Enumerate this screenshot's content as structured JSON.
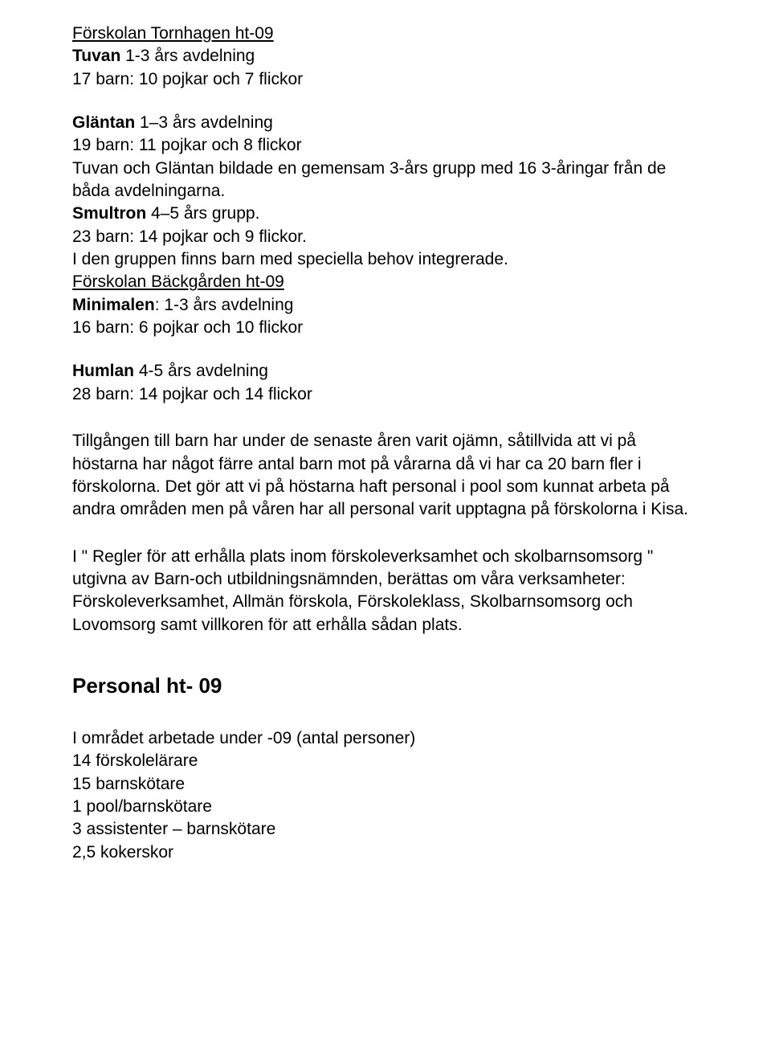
{
  "section1": {
    "title": "Förskolan Tornhagen ht-09",
    "tuvan_label": "Tuvan",
    "tuvan_rest": " 1-3 års avdelning",
    "tuvan_count": "17 barn: 10 pojkar och 7 flickor",
    "glantan_label": "Gläntan",
    "glantan_rest": " 1–3 års avdelning",
    "glantan_count": "19 barn: 11 pojkar och 8 flickor",
    "glantan_note": "Tuvan och Gläntan bildade en gemensam 3-års grupp med 16 3-åringar från de båda avdelningarna.",
    "smultron_label": "Smultron",
    "smultron_rest": " 4–5 års grupp.",
    "smultron_count": "23 barn: 14 pojkar och 9 flickor.",
    "smultron_note": "I den gruppen finns barn med speciella behov integrerade."
  },
  "section2": {
    "title": "Förskolan Bäckgården ht-09",
    "minimalen_label": "Minimalen",
    "minimalen_rest": ": 1-3 års avdelning",
    "minimalen_count": "16 barn: 6 pojkar och 10 flickor",
    "humlan_label": "Humlan",
    "humlan_rest": " 4-5 års avdelning",
    "humlan_count": "28 barn: 14 pojkar och 14 flickor"
  },
  "para1": "Tillgången till barn har under de senaste åren varit ojämn, såtillvida att vi på höstarna har något färre antal barn mot på vårarna då vi har ca 20 barn fler i förskolorna. Det gör att vi på höstarna haft personal i pool som kunnat arbeta på andra områden men på våren har all personal varit upptagna på förskolorna i Kisa.",
  "para2": "I \" Regler för att erhålla plats inom förskoleverksamhet och skolbarnsomsorg \" utgivna av Barn-och utbildningsnämnden, berättas om våra verksamheter: Förskoleverksamhet, Allmän förskola, Förskoleklass, Skolbarnsomsorg och Lovomsorg samt villkoren för att erhålla sådan plats.",
  "heading_personal": "Personal ht- 09",
  "personal_intro": "I området arbetade under -09 (antal personer)",
  "personal_lines": {
    "l1": "14 förskolelärare",
    "l2": "15 barnskötare",
    "l3": "1 pool/barnskötare",
    "l4": "3 assistenter – barnskötare",
    "l5": "2,5 kokerskor"
  }
}
